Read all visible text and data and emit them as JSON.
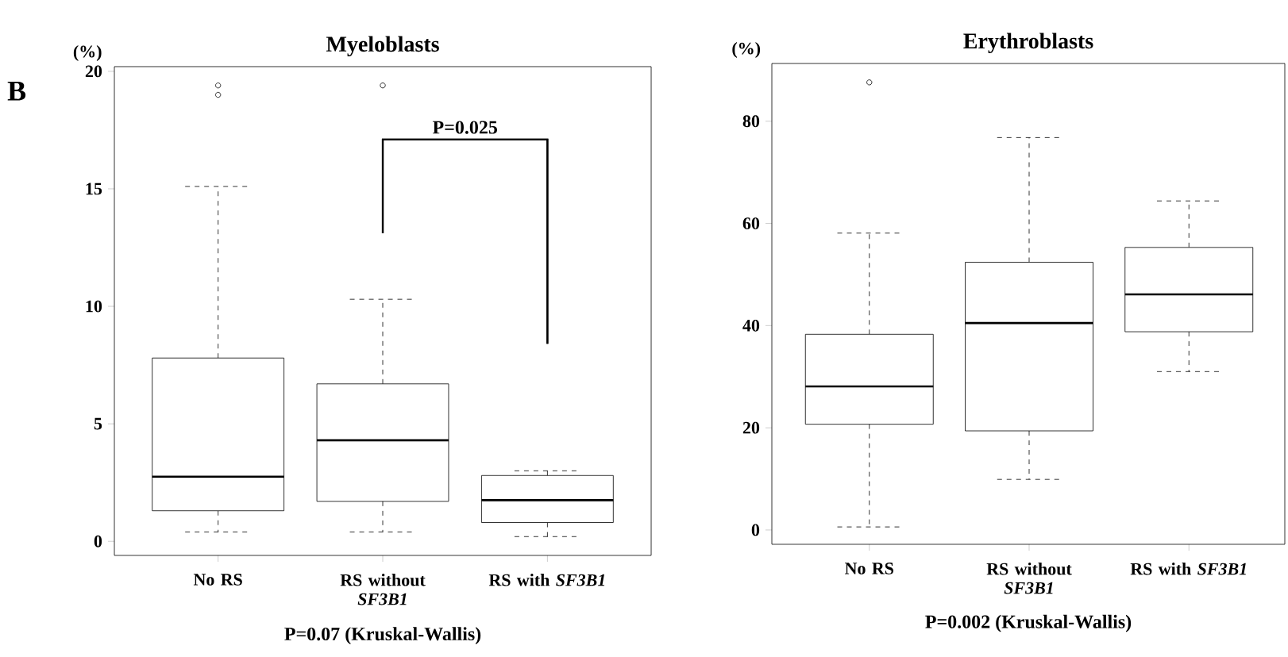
{
  "chart_data": [
    {
      "type": "box",
      "title": "Myeloblasts",
      "ylabel": "(%)",
      "categories": [
        "No RS",
        "RS without *SF3B1*",
        "RS with *SF3B1*"
      ],
      "boxes": [
        {
          "low": 0.4,
          "q1": 1.3,
          "median": 2.75,
          "q3": 7.8,
          "high": 15.1,
          "outliers": [
            19.0,
            19.4
          ]
        },
        {
          "low": 0.4,
          "q1": 1.7,
          "median": 4.3,
          "q3": 6.7,
          "high": 10.3,
          "outliers": [
            19.4
          ]
        },
        {
          "low": 0.2,
          "q1": 0.8,
          "median": 1.75,
          "q3": 2.8,
          "high": 3.0
        }
      ],
      "ylim": [
        -0.6,
        20.2
      ],
      "yticks": [
        0,
        5,
        10,
        15,
        20
      ],
      "annotations": [
        "B",
        "P=0.025",
        "P=0.07 (Kruskal-Wallis)"
      ]
    },
    {
      "type": "box",
      "title": "Erythroblasts",
      "ylabel": "(%)",
      "categories": [
        "No RS",
        "RS without *SF3B1*",
        "RS with *SF3B1*"
      ],
      "boxes": [
        {
          "low": 0.6,
          "q1": 20.7,
          "median": 28.1,
          "q3": 38.3,
          "high": 58.1,
          "outliers": [
            87.6
          ]
        },
        {
          "low": 9.9,
          "q1": 19.4,
          "median": 40.5,
          "q3": 52.4,
          "high": 76.8
        },
        {
          "low": 31.0,
          "q1": 38.8,
          "median": 46.1,
          "q3": 55.3,
          "high": 64.4
        }
      ],
      "ylim": [
        -2.8,
        91.3
      ],
      "yticks": [
        0,
        20,
        40,
        60,
        80
      ],
      "annotations": [
        "P=0.002 (Kruskal-Wallis)"
      ]
    }
  ]
}
